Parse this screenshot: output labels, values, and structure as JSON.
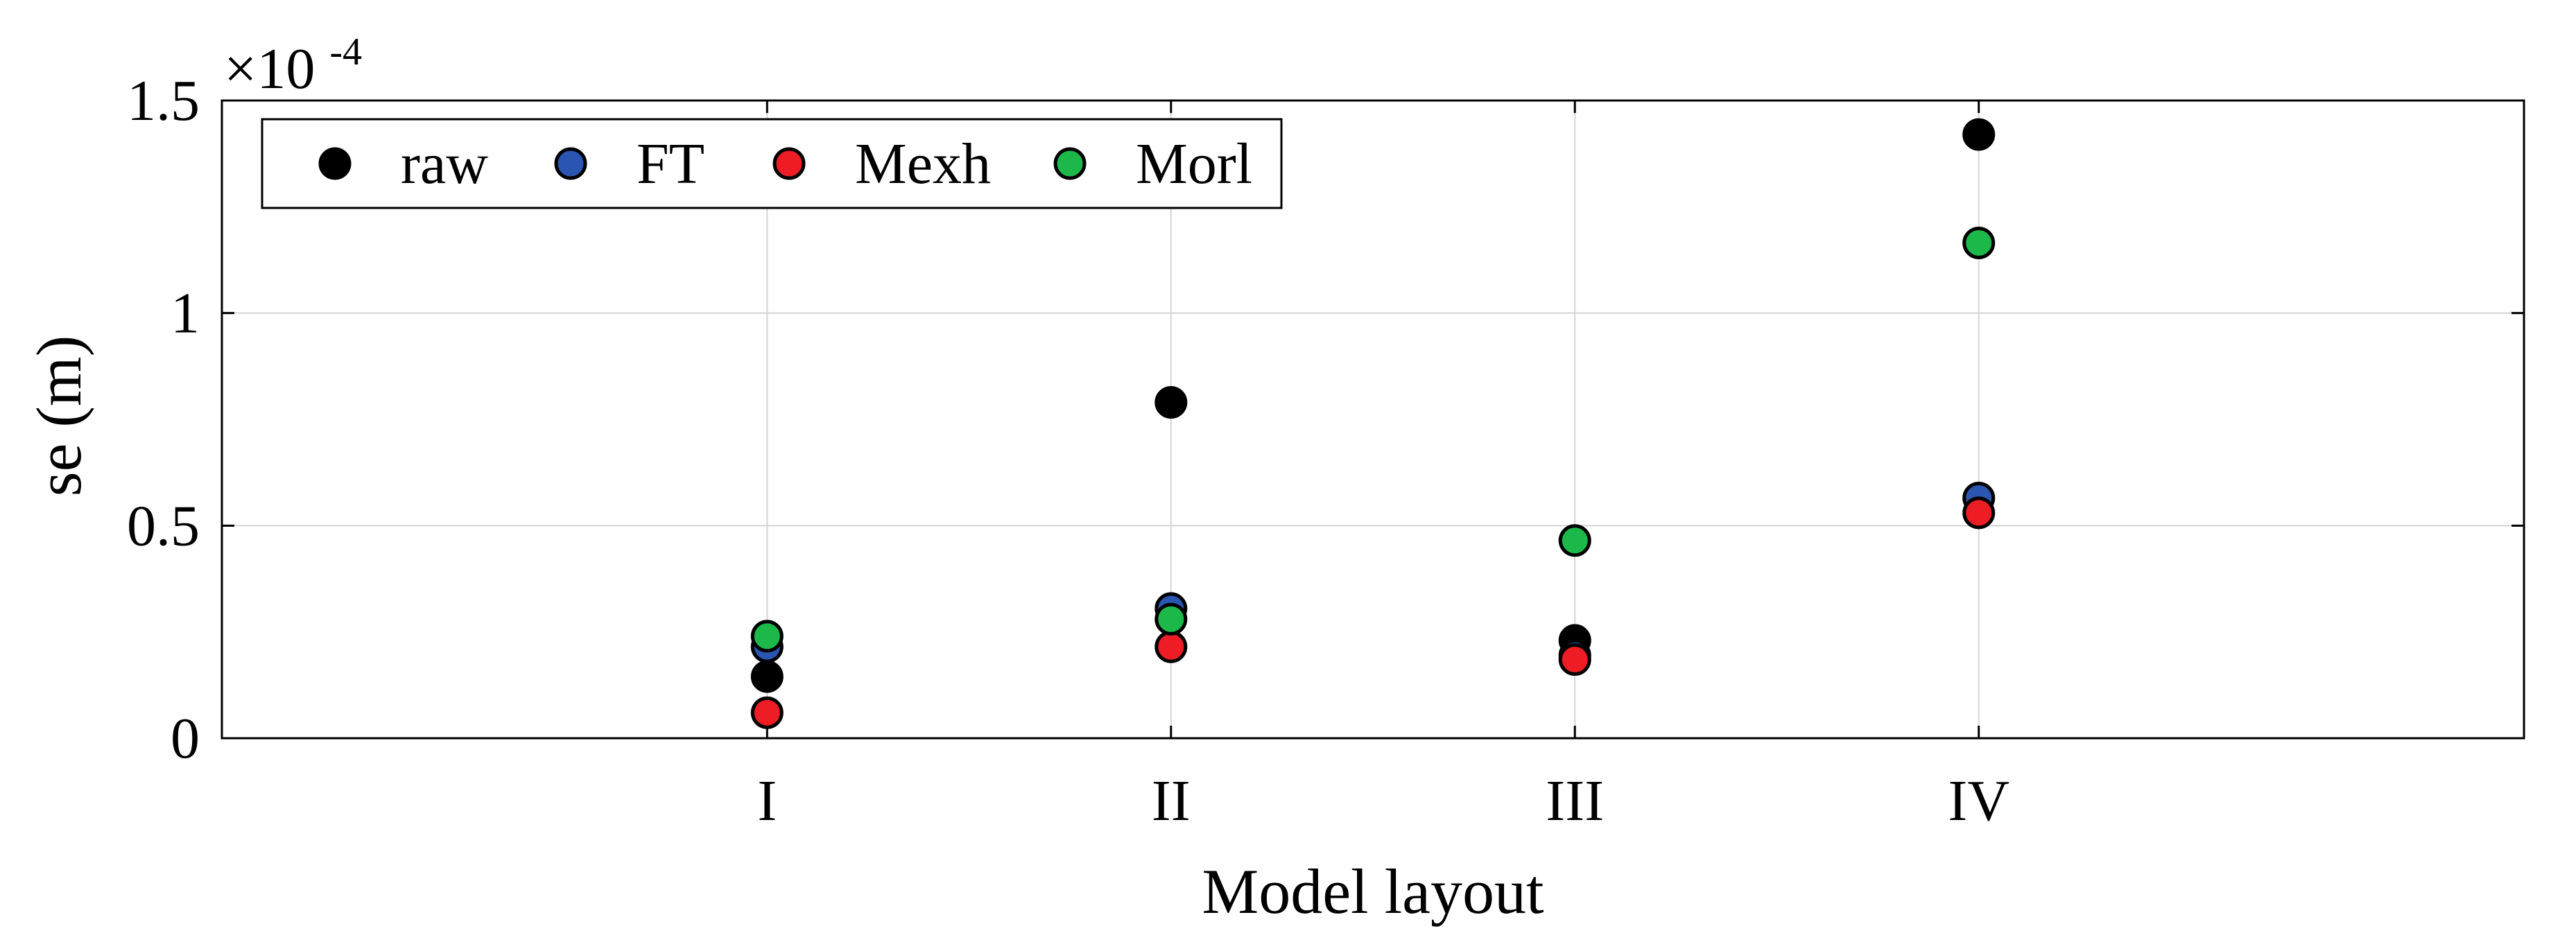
{
  "chart_data": {
    "type": "scatter",
    "categories": [
      "I",
      "II",
      "III",
      "IV"
    ],
    "xlabel": "Model layout",
    "ylabel": "se (m)",
    "ylim": [
      0,
      0.00015
    ],
    "yticks": [
      0,
      5e-05,
      0.0001,
      0.00015
    ],
    "ytick_labels": [
      "0",
      "0.5",
      "1",
      "1.5"
    ],
    "y_exponent_prefix": "×10",
    "y_exponent_power": "-4",
    "grid": true,
    "legend_position": "top-left",
    "series": [
      {
        "name": "raw",
        "color": "#000000",
        "values": [
          1.45e-05,
          7.9e-05,
          2.3e-05,
          0.000142
        ]
      },
      {
        "name": "FT",
        "color": "#2a55b0",
        "values": [
          2.15e-05,
          3.05e-05,
          1.95e-05,
          5.65e-05
        ]
      },
      {
        "name": "Mexh",
        "color": "#ee1c24",
        "values": [
          6e-06,
          2.15e-05,
          1.85e-05,
          5.3e-05
        ]
      },
      {
        "name": "Morl",
        "color": "#1db84a",
        "values": [
          2.4e-05,
          2.8e-05,
          4.65e-05,
          0.0001165
        ]
      }
    ]
  }
}
